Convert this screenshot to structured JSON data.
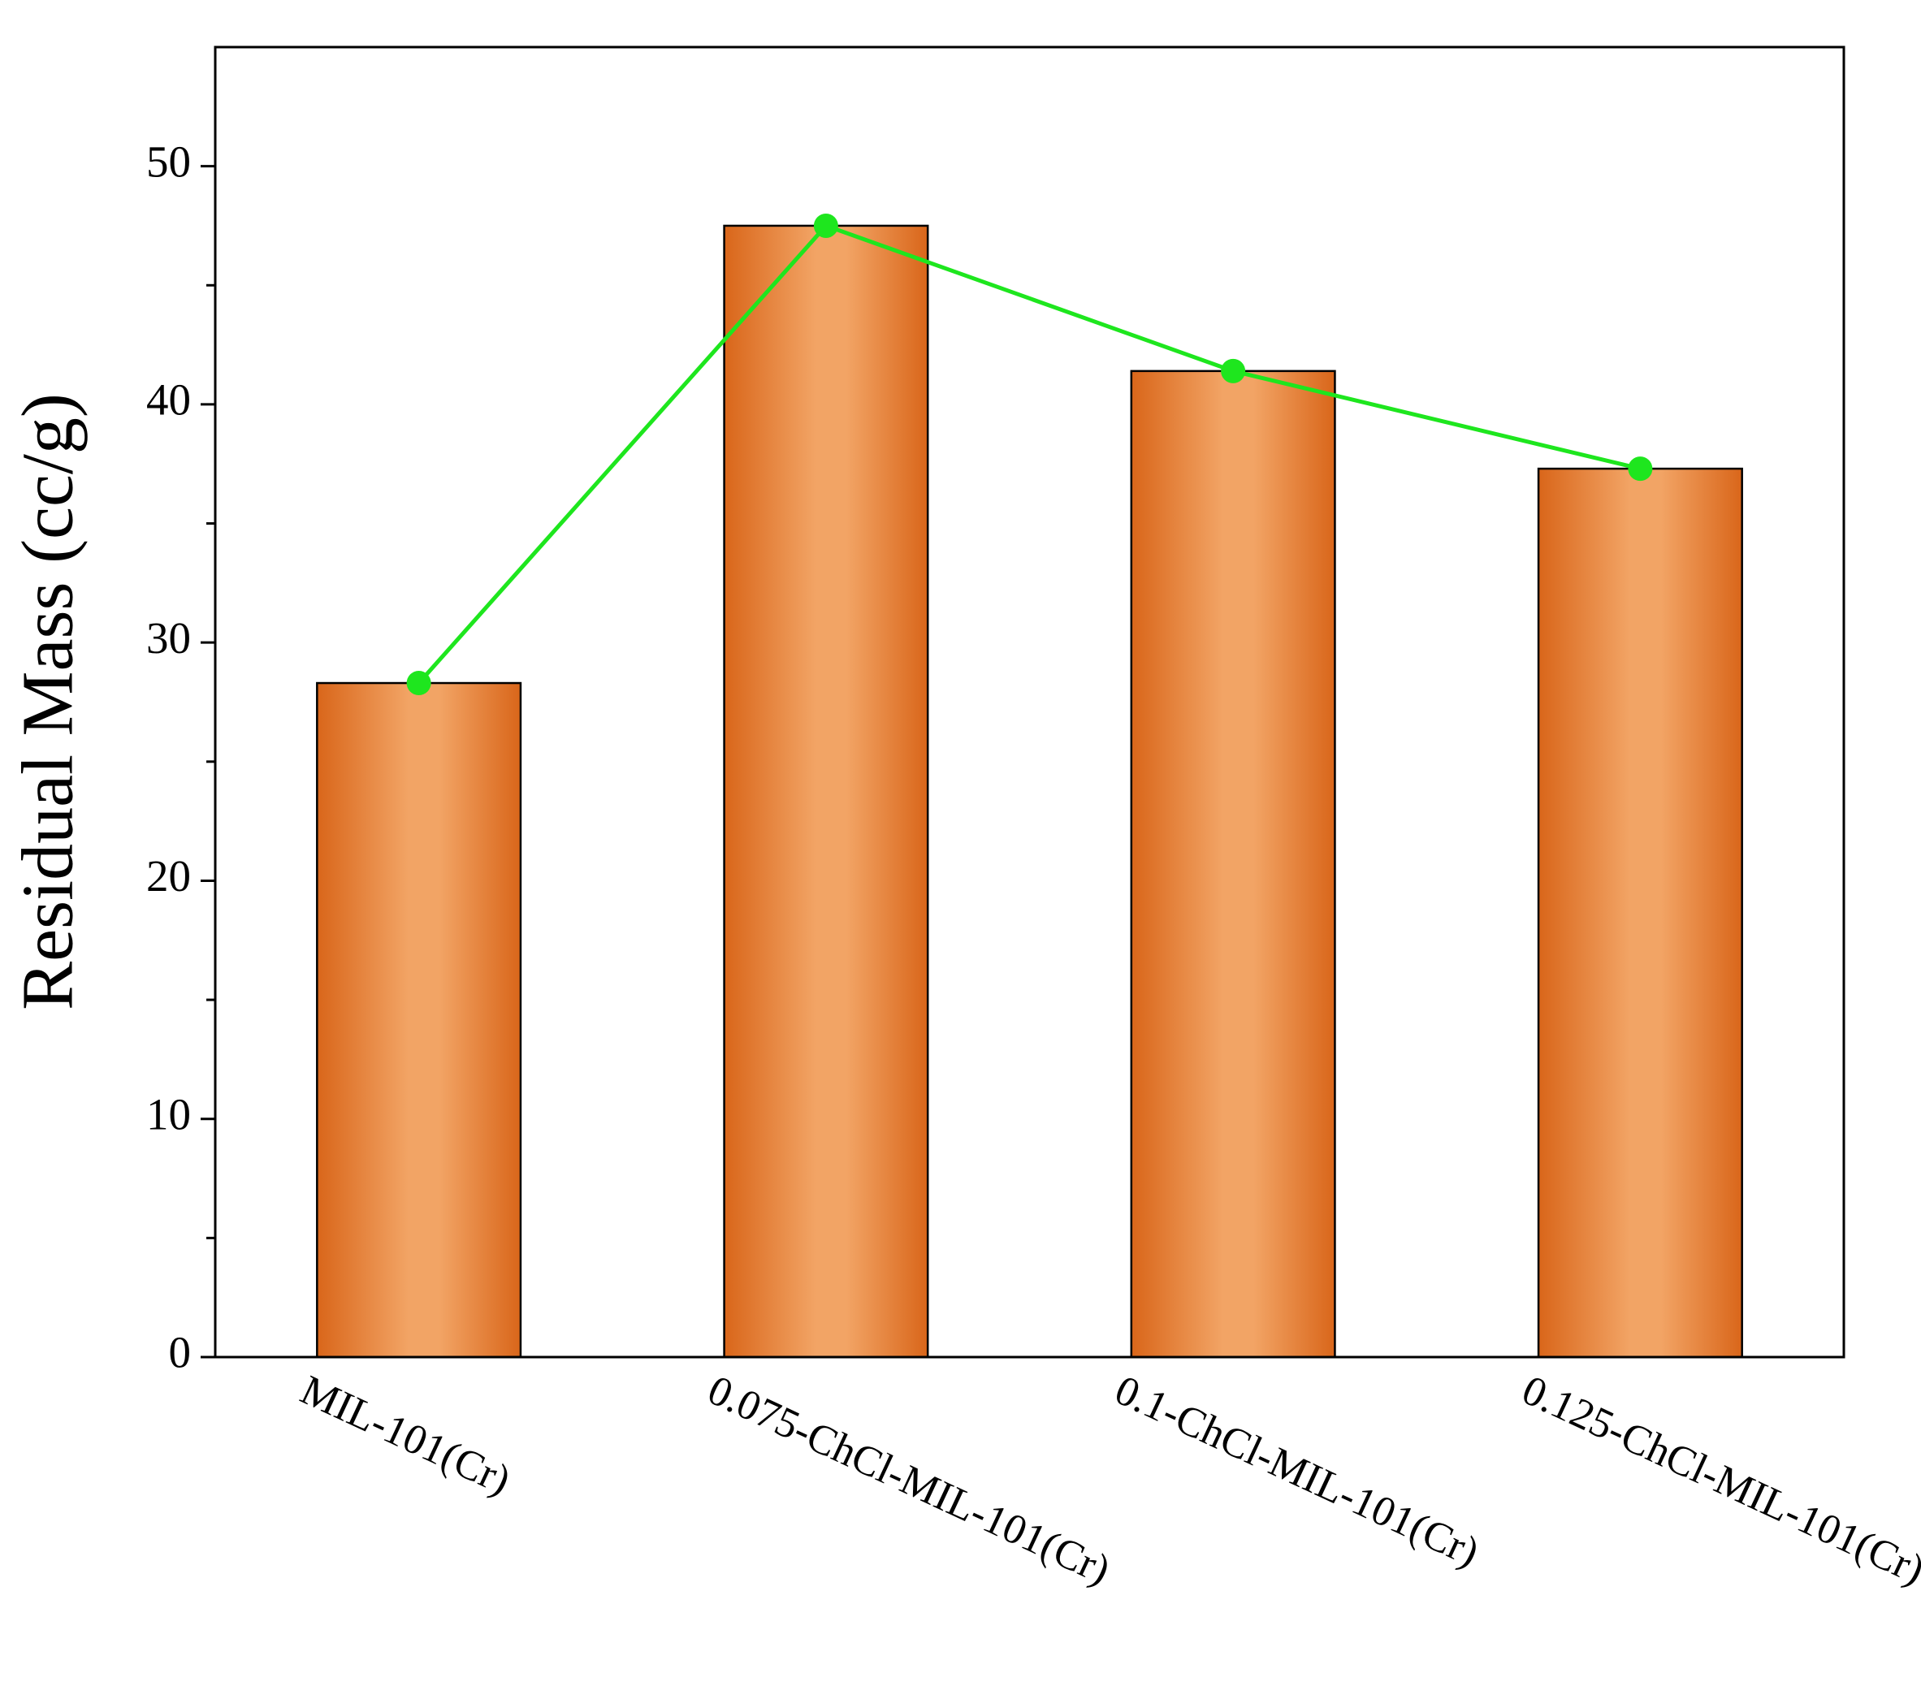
{
  "chart_data": {
    "type": "bar",
    "y_label": "Residual Mass (cc/g)",
    "categories": [
      "MIL-101(Cr)",
      "0.075-ChCl-MIL-101(Cr)",
      "0.1-ChCl-MIL-101(Cr)",
      "0.125-ChCl-MIL-101(Cr)"
    ],
    "series": [
      {
        "type": "bar",
        "color": "#f2a465",
        "edge_color": "#d9661a",
        "values": [
          28.3,
          47.5,
          41.4,
          37.3
        ]
      },
      {
        "type": "line",
        "color": "#1ee61e",
        "values": [
          28.3,
          47.5,
          41.4,
          37.3
        ]
      }
    ],
    "ylim": [
      0,
      55
    ],
    "yticks": [
      0,
      10,
      20,
      30,
      40,
      50
    ],
    "yminor_ticks": [
      5,
      15,
      25,
      35,
      45
    ],
    "grid": false
  }
}
